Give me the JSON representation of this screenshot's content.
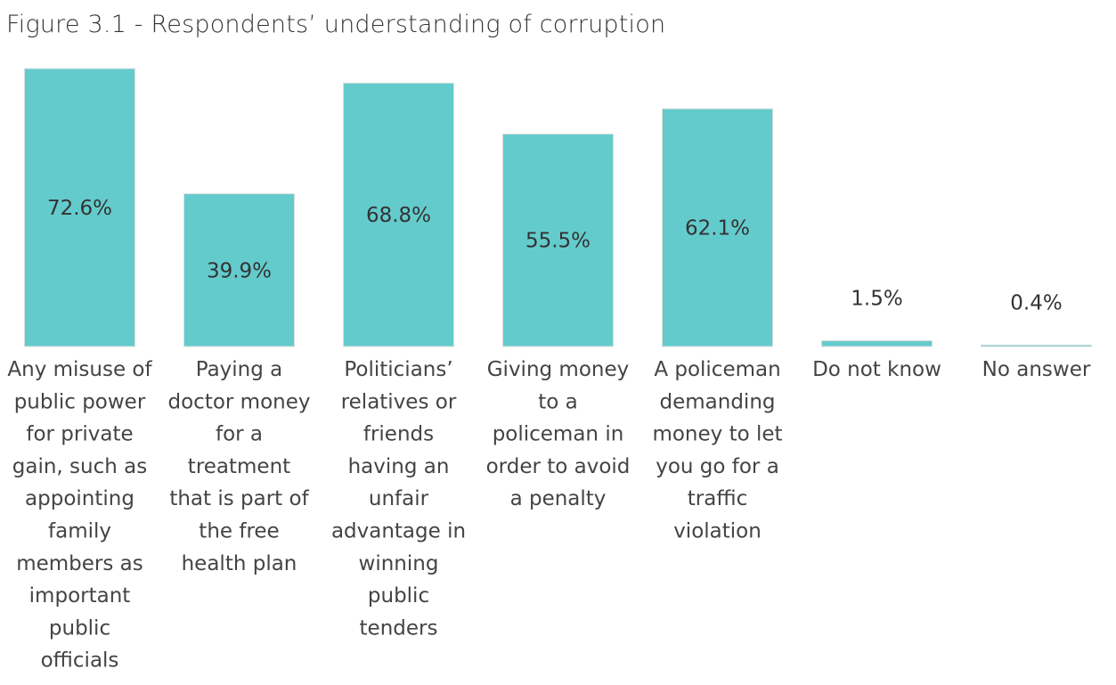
{
  "title": "Figure 3.1 - Respondents’ understanding of corruption",
  "colors": {
    "bar": "#64CBCC",
    "bar_stroke": "#d9dede",
    "text": "#333333"
  },
  "chart_data": {
    "type": "bar",
    "title": "Figure 3.1 - Respondents’ understanding of corruption",
    "xlabel": "",
    "ylabel": "",
    "ylim": [
      0,
      72.6
    ],
    "grid": false,
    "categories": [
      [
        "Any misuse of",
        "public power",
        "for private",
        "gain, such as",
        "appointing",
        "family",
        "members as",
        "important",
        "public",
        "officials"
      ],
      [
        "Paying a",
        "doctor money",
        "for a",
        "treatment",
        "that is part of",
        "the free",
        "health plan"
      ],
      [
        "Politicians’",
        "relatives or",
        "friends",
        "having an",
        "unfair",
        "advantage in",
        "winning",
        "public",
        "tenders"
      ],
      [
        "Giving money",
        "to a",
        "policeman in",
        "order to avoid",
        "a penalty"
      ],
      [
        "A policeman",
        "demanding",
        "money to let",
        "you go for a",
        "traffic",
        "violation"
      ],
      [
        "Do not know"
      ],
      [
        "No answer"
      ]
    ],
    "values": [
      72.6,
      39.9,
      68.8,
      55.5,
      62.1,
      1.5,
      0.4
    ],
    "value_labels": [
      "72.6%",
      "39.9%",
      "68.8%",
      "55.5%",
      "62.1%",
      "1.5%",
      "0.4%"
    ]
  }
}
